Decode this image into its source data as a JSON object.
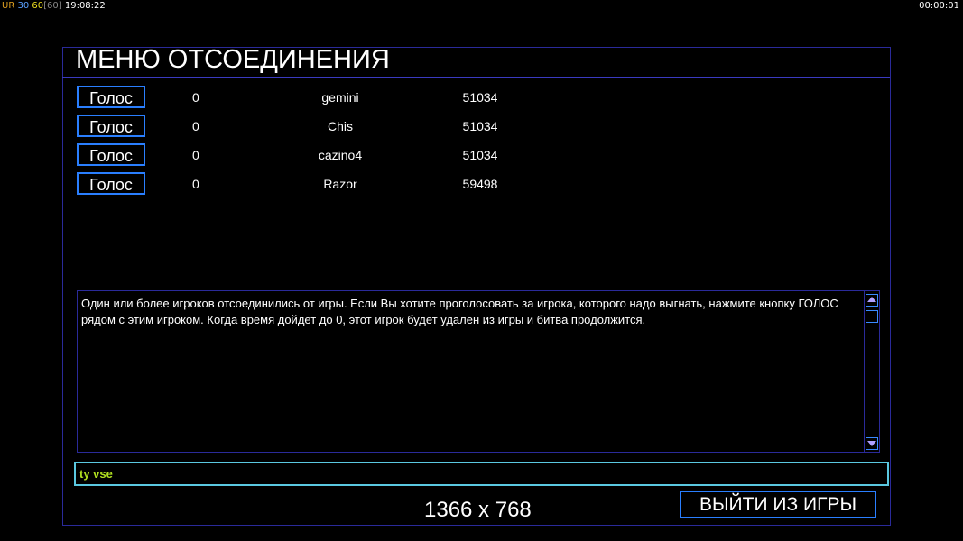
{
  "hud": {
    "ur": "UR",
    "fps": "30",
    "target": "60",
    "cap": "[60]",
    "time": "19:08:22",
    "timer": "00:00:01"
  },
  "title": "МЕНЮ ОТСОЕДИНЕНИЯ",
  "players": [
    {
      "vote": "Голос",
      "votes": "0",
      "name": "gemini",
      "id": "51034"
    },
    {
      "vote": "Голос",
      "votes": "0",
      "name": "Chis",
      "id": "51034"
    },
    {
      "vote": "Голос",
      "votes": "0",
      "name": "cazino4",
      "id": "51034"
    },
    {
      "vote": "Голос",
      "votes": "0",
      "name": "Razor",
      "id": "59498"
    }
  ],
  "message": "Один или более игроков отсоединились от игры. Если Вы хотите проголосовать за игрока, которого надо выгнать, нажмите кнопку ГОЛОС рядом с этим игроком. Когда время дойдет до 0, этот игрок будет удален из игры и битва продолжится.",
  "chat_input": "ty vse",
  "resolution": "1366 x 768",
  "exit_label": "ВЫЙТИ ИЗ ИГРЫ"
}
